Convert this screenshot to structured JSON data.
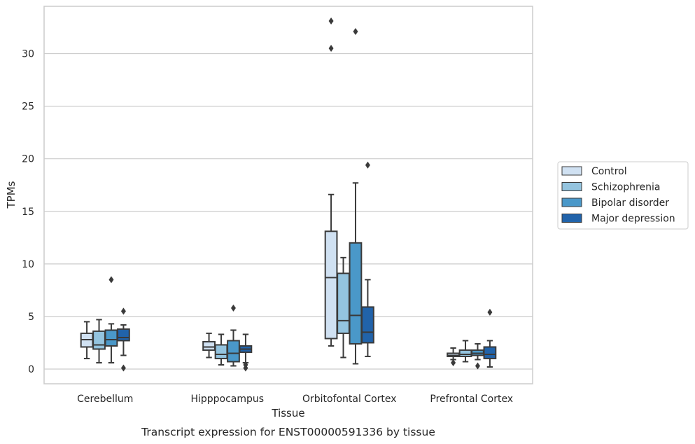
{
  "chart_data": {
    "type": "box",
    "xlabel": "Tissue",
    "ylabel": "TPMs",
    "caption": "Transcript expression for ENST00000591336 by tissue",
    "ylim": [
      -1.4,
      34.5
    ],
    "yticks": [
      0,
      5,
      10,
      15,
      20,
      25,
      30
    ],
    "grid": "horizontal",
    "legend_position": "right",
    "categories": [
      "Cerebellum",
      "Hipppocampus",
      "Orbitofontal Cortex",
      "Prefrontal Cortex"
    ],
    "series": [
      {
        "name": "Control",
        "color": "#d0e1f2",
        "boxes": [
          {
            "q1": 2.1,
            "median": 2.8,
            "q3": 3.4,
            "low": 1.0,
            "high": 4.5,
            "outliers": []
          },
          {
            "q1": 1.8,
            "median": 2.1,
            "q3": 2.6,
            "low": 1.1,
            "high": 3.4,
            "outliers": []
          },
          {
            "q1": 2.9,
            "median": 8.7,
            "q3": 13.1,
            "low": 2.2,
            "high": 16.6,
            "outliers": [
              30.5,
              33.1
            ]
          },
          {
            "q1": 1.2,
            "median": 1.3,
            "q3": 1.5,
            "low": 0.9,
            "high": 2.0,
            "outliers": [
              0.6
            ]
          }
        ]
      },
      {
        "name": "Schizophrenia",
        "color": "#94c4df",
        "boxes": [
          {
            "q1": 1.9,
            "median": 2.3,
            "q3": 3.6,
            "low": 0.6,
            "high": 4.7,
            "outliers": []
          },
          {
            "q1": 1.0,
            "median": 1.4,
            "q3": 2.3,
            "low": 0.4,
            "high": 3.3,
            "outliers": []
          },
          {
            "q1": 3.4,
            "median": 4.6,
            "q3": 9.1,
            "low": 1.1,
            "high": 10.6,
            "outliers": []
          },
          {
            "q1": 1.2,
            "median": 1.4,
            "q3": 1.8,
            "low": 0.7,
            "high": 2.7,
            "outliers": []
          }
        ]
      },
      {
        "name": "Bipolar disorder",
        "color": "#4a98c9",
        "boxes": [
          {
            "q1": 2.2,
            "median": 2.8,
            "q3": 3.7,
            "low": 0.6,
            "high": 4.3,
            "outliers": [
              8.5
            ]
          },
          {
            "q1": 0.7,
            "median": 1.5,
            "q3": 2.7,
            "low": 0.3,
            "high": 3.7,
            "outliers": [
              5.8
            ]
          },
          {
            "q1": 2.4,
            "median": 5.1,
            "q3": 12.0,
            "low": 0.5,
            "high": 17.7,
            "outliers": [
              32.1
            ]
          },
          {
            "q1": 1.3,
            "median": 1.5,
            "q3": 1.8,
            "low": 0.9,
            "high": 2.4,
            "outliers": [
              0.3
            ]
          }
        ]
      },
      {
        "name": "Major depression",
        "color": "#2163aa",
        "boxes": [
          {
            "q1": 2.7,
            "median": 3.0,
            "q3": 3.8,
            "low": 1.3,
            "high": 4.2,
            "outliers": [
              5.5,
              0.1
            ]
          },
          {
            "q1": 1.6,
            "median": 1.9,
            "q3": 2.2,
            "low": 0.6,
            "high": 3.3,
            "outliers": [
              0.4,
              0.1
            ]
          },
          {
            "q1": 2.5,
            "median": 3.5,
            "q3": 5.9,
            "low": 1.2,
            "high": 8.5,
            "outliers": [
              19.4
            ]
          },
          {
            "q1": 1.0,
            "median": 1.4,
            "q3": 2.1,
            "low": 0.2,
            "high": 2.7,
            "outliers": [
              5.4
            ]
          }
        ]
      }
    ]
  }
}
